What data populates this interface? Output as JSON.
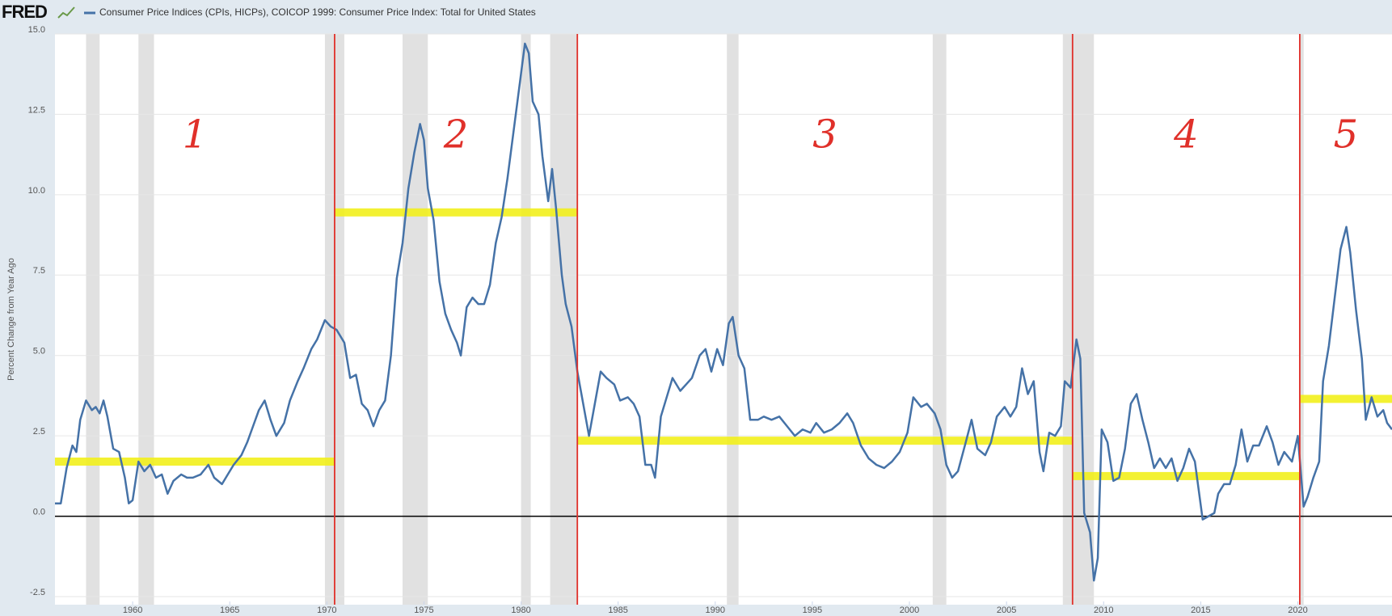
{
  "chart_data": {
    "type": "line",
    "logo": "FRED",
    "y_label": "Percent Change from Year Ago",
    "xlim": [
      1956,
      2024.85
    ],
    "xticks": [
      1960,
      1965,
      1970,
      1975,
      1980,
      1985,
      1990,
      1995,
      2000,
      2005,
      2010,
      2015,
      2020
    ],
    "ylim": [
      -2.75,
      15
    ],
    "yticks": [
      {
        "value": 15,
        "label": "15.0"
      },
      12.5,
      {
        "value": 10,
        "label": "10.0"
      },
      7.5,
      {
        "value": 5,
        "label": "5.0"
      },
      2.5,
      {
        "value": 0,
        "label": "0.0"
      },
      -2.5
    ],
    "grid": true,
    "recession_color": "#e1e1e1",
    "recessions": [
      [
        1957.6,
        1958.3
      ],
      [
        1960.3,
        1961.1
      ],
      [
        1969.9,
        1970.9
      ],
      [
        1973.9,
        1975.2
      ],
      [
        1980.0,
        1980.5
      ],
      [
        1981.5,
        1982.9
      ],
      [
        1990.6,
        1991.2
      ],
      [
        2001.2,
        2001.9
      ],
      [
        2007.9,
        2009.5
      ],
      [
        2020.1,
        2020.3
      ]
    ],
    "regime_line_color": "#e0302a",
    "regime_bar_color": "#f2f01c",
    "regimes": [
      {
        "label": "1",
        "start": 1956,
        "end": 1970.4,
        "mean": 1.7
      },
      {
        "label": "2",
        "start": 1970.4,
        "end": 1982.9,
        "mean": 9.45
      },
      {
        "label": "3",
        "start": 1982.9,
        "end": 2008.4,
        "mean": 2.35
      },
      {
        "label": "4",
        "start": 2008.4,
        "end": 2020.1,
        "mean": 1.25
      },
      {
        "label": "5",
        "start": 2020.1,
        "end": 2024.85,
        "mean": 3.65
      }
    ],
    "x": [
      1956.0,
      1956.3,
      1956.6,
      1956.9,
      1957.1,
      1957.3,
      1957.6,
      1957.9,
      1958.1,
      1958.3,
      1958.5,
      1958.7,
      1959.0,
      1959.3,
      1959.6,
      1959.8,
      1960.0,
      1960.3,
      1960.6,
      1960.9,
      1961.2,
      1961.5,
      1961.8,
      1962.1,
      1962.5,
      1962.8,
      1963.1,
      1963.5,
      1963.9,
      1964.2,
      1964.6,
      1964.9,
      1965.2,
      1965.6,
      1965.9,
      1966.2,
      1966.5,
      1966.8,
      1967.1,
      1967.4,
      1967.8,
      1968.1,
      1968.5,
      1968.8,
      1969.2,
      1969.5,
      1969.9,
      1970.2,
      1970.5,
      1970.9,
      1971.2,
      1971.5,
      1971.8,
      1972.1,
      1972.4,
      1972.7,
      1973.0,
      1973.3,
      1973.6,
      1973.9,
      1974.2,
      1974.5,
      1974.8,
      1975.0,
      1975.2,
      1975.5,
      1975.8,
      1976.1,
      1976.4,
      1976.7,
      1976.9,
      1977.2,
      1977.5,
      1977.8,
      1978.1,
      1978.4,
      1978.7,
      1979.0,
      1979.3,
      1979.6,
      1979.9,
      1980.2,
      1980.4,
      1980.6,
      1980.9,
      1981.1,
      1981.4,
      1981.6,
      1981.8,
      1982.1,
      1982.3,
      1982.6,
      1982.9,
      1983.2,
      1983.5,
      1983.8,
      1984.1,
      1984.4,
      1984.8,
      1985.1,
      1985.5,
      1985.8,
      1986.1,
      1986.4,
      1986.7,
      1986.9,
      1987.2,
      1987.5,
      1987.8,
      1988.2,
      1988.5,
      1988.8,
      1989.2,
      1989.5,
      1989.8,
      1990.1,
      1990.4,
      1990.7,
      1990.9,
      1991.2,
      1991.5,
      1991.8,
      1992.2,
      1992.5,
      1992.9,
      1993.3,
      1993.7,
      1994.1,
      1994.5,
      1994.9,
      1995.2,
      1995.6,
      1996.0,
      1996.4,
      1996.8,
      1997.1,
      1997.5,
      1997.9,
      1998.3,
      1998.7,
      1999.1,
      1999.5,
      1999.9,
      2000.2,
      2000.6,
      2000.9,
      2001.3,
      2001.6,
      2001.9,
      2002.2,
      2002.5,
      2002.9,
      2003.2,
      2003.5,
      2003.9,
      2004.2,
      2004.5,
      2004.9,
      2005.2,
      2005.5,
      2005.8,
      2006.1,
      2006.4,
      2006.7,
      2006.9,
      2007.2,
      2007.5,
      2007.8,
      2008.0,
      2008.3,
      2008.6,
      2008.8,
      2009.0,
      2009.3,
      2009.5,
      2009.7,
      2009.9,
      2010.2,
      2010.5,
      2010.8,
      2011.1,
      2011.4,
      2011.7,
      2012.0,
      2012.3,
      2012.6,
      2012.9,
      2013.2,
      2013.5,
      2013.8,
      2014.1,
      2014.4,
      2014.7,
      2014.9,
      2015.1,
      2015.4,
      2015.7,
      2015.9,
      2016.2,
      2016.5,
      2016.8,
      2017.1,
      2017.4,
      2017.7,
      2018.0,
      2018.4,
      2018.7,
      2019.0,
      2019.3,
      2019.7,
      2020.0,
      2020.3,
      2020.5,
      2020.8,
      2021.1,
      2021.3,
      2021.6,
      2021.9,
      2022.2,
      2022.5,
      2022.7,
      2023.0,
      2023.3,
      2023.5,
      2023.8,
      2024.1,
      2024.4,
      2024.6,
      2024.85
    ],
    "series": [
      {
        "name": "Consumer Price Indices (CPIs, HICPs), COICOP 1999: Consumer Price Index: Total for United States",
        "color": "#4572a7",
        "values": [
          0.4,
          0.4,
          1.5,
          2.2,
          2.0,
          3.0,
          3.6,
          3.3,
          3.4,
          3.2,
          3.6,
          3.1,
          2.1,
          2.0,
          1.2,
          0.4,
          0.5,
          1.7,
          1.4,
          1.6,
          1.2,
          1.3,
          0.7,
          1.1,
          1.3,
          1.2,
          1.2,
          1.3,
          1.6,
          1.2,
          1.0,
          1.3,
          1.6,
          1.9,
          2.3,
          2.8,
          3.3,
          3.6,
          3.0,
          2.5,
          2.9,
          3.6,
          4.2,
          4.6,
          5.2,
          5.5,
          6.1,
          5.9,
          5.8,
          5.4,
          4.3,
          4.4,
          3.5,
          3.3,
          2.8,
          3.3,
          3.6,
          5.0,
          7.4,
          8.5,
          10.2,
          11.3,
          12.2,
          11.7,
          10.2,
          9.2,
          7.3,
          6.3,
          5.8,
          5.4,
          5.0,
          6.5,
          6.8,
          6.6,
          6.6,
          7.2,
          8.5,
          9.3,
          10.5,
          11.9,
          13.3,
          14.7,
          14.4,
          12.9,
          12.5,
          11.2,
          9.8,
          10.8,
          9.6,
          7.5,
          6.6,
          5.9,
          4.5,
          3.5,
          2.5,
          3.5,
          4.5,
          4.3,
          4.1,
          3.6,
          3.7,
          3.5,
          3.1,
          1.6,
          1.6,
          1.2,
          3.1,
          3.7,
          4.3,
          3.9,
          4.1,
          4.3,
          5.0,
          5.2,
          4.5,
          5.2,
          4.7,
          6.0,
          6.2,
          5.0,
          4.6,
          3.0,
          3.0,
          3.1,
          3.0,
          3.1,
          2.8,
          2.5,
          2.7,
          2.6,
          2.9,
          2.6,
          2.7,
          2.9,
          3.2,
          2.9,
          2.2,
          1.8,
          1.6,
          1.5,
          1.7,
          2.0,
          2.6,
          3.7,
          3.4,
          3.5,
          3.2,
          2.7,
          1.6,
          1.2,
          1.4,
          2.3,
          3.0,
          2.1,
          1.9,
          2.3,
          3.1,
          3.4,
          3.1,
          3.4,
          4.6,
          3.8,
          4.2,
          2.0,
          1.4,
          2.6,
          2.5,
          2.8,
          4.2,
          4.0,
          5.5,
          4.9,
          0.1,
          -0.5,
          -2.0,
          -1.3,
          2.7,
          2.3,
          1.1,
          1.2,
          2.1,
          3.5,
          3.8,
          3.0,
          2.3,
          1.5,
          1.8,
          1.5,
          1.8,
          1.1,
          1.5,
          2.1,
          1.7,
          0.8,
          -0.1,
          0.0,
          0.1,
          0.7,
          1.0,
          1.0,
          1.6,
          2.7,
          1.7,
          2.2,
          2.2,
          2.8,
          2.3,
          1.6,
          2.0,
          1.7,
          2.5,
          0.3,
          0.6,
          1.2,
          1.7,
          4.2,
          5.3,
          6.8,
          8.3,
          9.0,
          8.2,
          6.4,
          4.9,
          3.0,
          3.7,
          3.1,
          3.3,
          2.9,
          2.7
        ]
      }
    ]
  }
}
